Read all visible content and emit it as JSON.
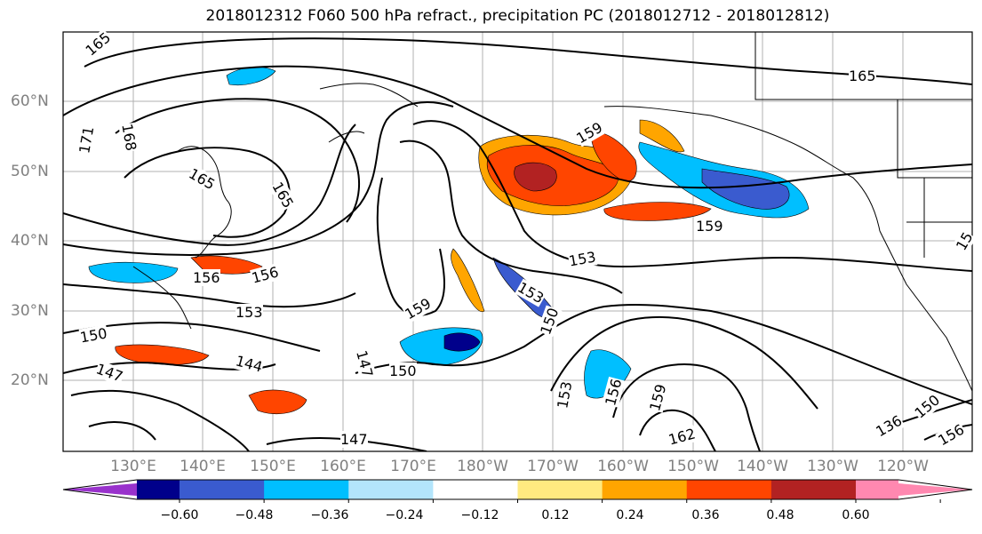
{
  "title": "2018012312 F060 500 hPa refract., precipitation PC (2018012712 - 2018012812)",
  "lat_labels": [
    "60°N",
    "50°N",
    "40°N",
    "30°N",
    "20°N"
  ],
  "lon_labels": [
    "130°E",
    "140°E",
    "150°E",
    "160°E",
    "170°E",
    "180°W",
    "170°W",
    "160°W",
    "150°W",
    "140°W",
    "130°W",
    "120°W"
  ],
  "contour_labels": [
    "165",
    "171",
    "168",
    "165",
    "165",
    "165",
    "159",
    "153",
    "153",
    "150",
    "159",
    "156",
    "156",
    "153",
    "150",
    "147",
    "144",
    "147",
    "150",
    "159",
    "153",
    "156",
    "159",
    "162",
    "147",
    "136",
    "150",
    "156",
    "15"
  ],
  "colorbar": {
    "tick_labels": [
      "−0.60",
      "−0.48",
      "−0.36",
      "−0.24",
      "−0.12",
      "0.12",
      "0.24",
      "0.36",
      "0.48",
      "0.60"
    ],
    "colors": [
      "#9932cc",
      "#00008b",
      "#3a5bcf",
      "#00bfff",
      "#b3e5fc",
      "#ffffff",
      "#ffea80",
      "#ffa500",
      "#ff4500",
      "#b22222",
      "#ff88b0"
    ]
  }
}
